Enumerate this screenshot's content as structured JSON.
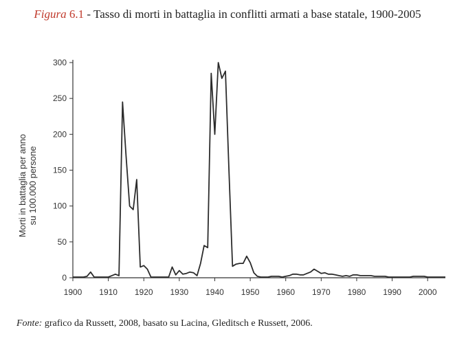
{
  "caption": {
    "figure_label": "Figura",
    "figure_number": "6.1",
    "separator": "-",
    "title": "Tasso di morti in battaglia in conflitti armati a base statale, 1900-2005"
  },
  "source": {
    "label": "Fonte:",
    "text": "grafico da Russett, 2008, basato su Lacina, Gleditsch e Russett, 2006."
  },
  "chart_data": {
    "type": "line",
    "title": "",
    "xlabel": "",
    "ylabel_lines": [
      "Morti in battaglia per anno",
      "su 100.000 persone"
    ],
    "xlim": [
      1900,
      2005
    ],
    "ylim": [
      0,
      300
    ],
    "xticks": [
      1900,
      1910,
      1920,
      1930,
      1940,
      1950,
      1960,
      1970,
      1980,
      1990,
      2000
    ],
    "yticks": [
      0,
      50,
      100,
      150,
      200,
      250,
      300
    ],
    "line_color": "#2b2b2b",
    "grid": false,
    "series": [
      {
        "x": [
          1900,
          1901,
          1902,
          1903,
          1904,
          1905,
          1906,
          1907,
          1908,
          1909,
          1910,
          1911,
          1912,
          1913,
          1914,
          1915,
          1916,
          1917,
          1918,
          1919,
          1920,
          1921,
          1922,
          1923,
          1924,
          1925,
          1926,
          1927,
          1928,
          1929,
          1930,
          1931,
          1932,
          1933,
          1934,
          1935,
          1936,
          1937,
          1938,
          1939,
          1940,
          1941,
          1942,
          1943,
          1944,
          1945,
          1946,
          1947,
          1948,
          1949,
          1950,
          1951,
          1952,
          1953,
          1954,
          1955,
          1956,
          1957,
          1958,
          1959,
          1960,
          1961,
          1962,
          1963,
          1964,
          1965,
          1966,
          1967,
          1968,
          1969,
          1970,
          1971,
          1972,
          1973,
          1974,
          1975,
          1976,
          1977,
          1978,
          1979,
          1980,
          1981,
          1982,
          1983,
          1984,
          1985,
          1986,
          1987,
          1988,
          1989,
          1990,
          1991,
          1992,
          1993,
          1994,
          1995,
          1996,
          1997,
          1998,
          1999,
          2000,
          2001,
          2002,
          2003,
          2004,
          2005
        ],
        "y": [
          1,
          1,
          1,
          1,
          2,
          8,
          1,
          1,
          1,
          1,
          1,
          3,
          5,
          3,
          245,
          170,
          100,
          95,
          137,
          15,
          17,
          12,
          1,
          1,
          1,
          1,
          1,
          1,
          15,
          4,
          10,
          5,
          6,
          8,
          7,
          3,
          20,
          45,
          42,
          285,
          200,
          300,
          278,
          288,
          150,
          16,
          19,
          20,
          20,
          30,
          21,
          7,
          2,
          1,
          1,
          1,
          2,
          2,
          2,
          1,
          2,
          3,
          5,
          5,
          4,
          4,
          6,
          8,
          12,
          9,
          6,
          7,
          5,
          5,
          4,
          3,
          2,
          3,
          2,
          4,
          4,
          3,
          3,
          3,
          3,
          2,
          2,
          2,
          2,
          1,
          1,
          1,
          1,
          1,
          1,
          1,
          2,
          2,
          2,
          2,
          1,
          1,
          1,
          1,
          1,
          1
        ]
      }
    ]
  }
}
